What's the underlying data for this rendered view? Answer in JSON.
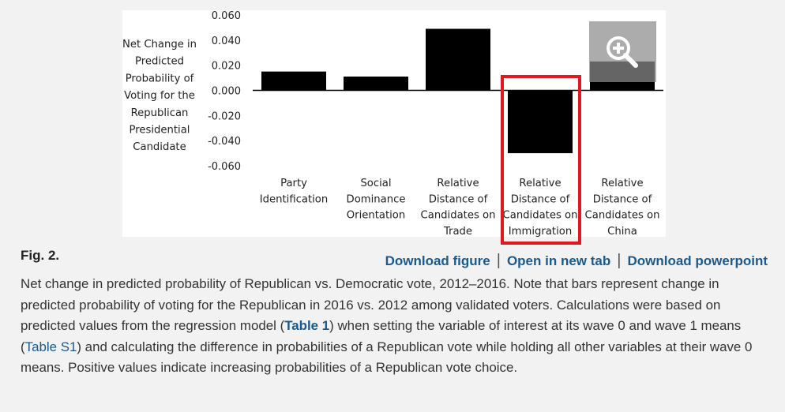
{
  "chart_data": {
    "type": "bar",
    "ylabel_lines": [
      "Net Change in",
      "Predicted",
      "Probability of",
      "Voting for the",
      "Republican",
      "Presidential",
      "Candidate"
    ],
    "ylim": [
      -0.06,
      0.06
    ],
    "yticks": [
      "0.060",
      "0.040",
      "0.020",
      "0.000",
      "-0.020",
      "-0.040",
      "-0.060"
    ],
    "categories": [
      [
        "Party",
        "Identification"
      ],
      [
        "Social",
        "Dominance",
        "Orientation"
      ],
      [
        "Relative",
        "Distance of",
        "Candidates on",
        "Trade"
      ],
      [
        "Relative",
        "Distance of",
        "Candidates on",
        "Immigration"
      ],
      [
        "Relative",
        "Distance of",
        "Candidates on",
        "China"
      ]
    ],
    "values": [
      0.015,
      0.011,
      0.049,
      -0.05,
      0.023
    ],
    "bar_color": "#000000"
  },
  "figure": {
    "label": "Fig. 2.",
    "zoom_icon": "zoom-in-magnifier-icon",
    "highlight_color": "#e0191f"
  },
  "links": {
    "download_figure": "Download figure",
    "open_new_tab": "Open in new tab",
    "download_powerpoint": "Download powerpoint",
    "separator": "|"
  },
  "caption": {
    "part1": "Net change in predicted probability of Republican vs. Democratic vote, 2012–2016. Note that bars represent change in predicted probability of voting for the Republican in 2016 vs. 2012 among validated voters. Calculations were based on predicted values from the regression model (",
    "table1_link": "Table 1",
    "part2": ") when setting the variable of interest at its wave 0 and wave 1 means (",
    "tables1_link": "Table S1",
    "part3": ") and calculating the difference in probabilities of a Republican vote while holding all other variables at their wave 0 means. Positive values indicate increasing probabilities of a Republican vote choice."
  }
}
